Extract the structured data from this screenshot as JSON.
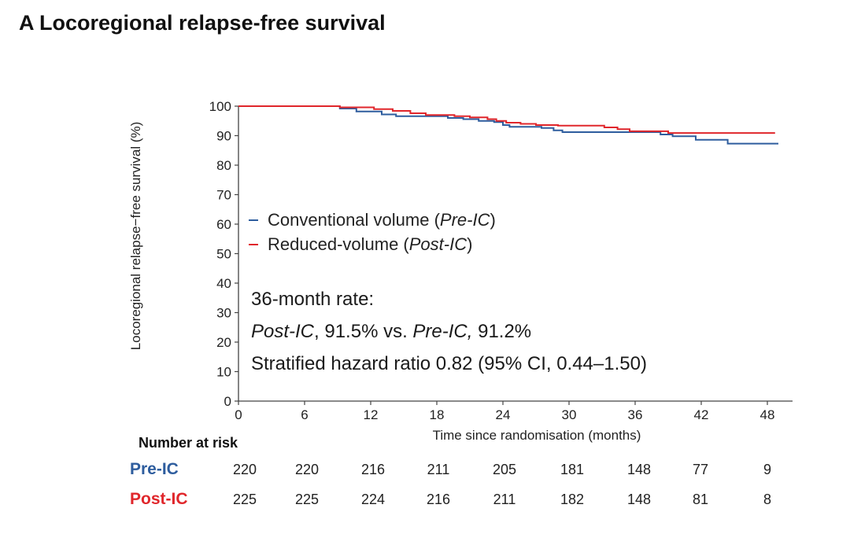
{
  "panel_title": "A Locoregional relapse-free survival",
  "colors": {
    "pre_ic": "#2e5d9e",
    "post_ic": "#e0262b",
    "axis": "#444444"
  },
  "chart_data": {
    "type": "line",
    "subtype": "kaplan-meier-step",
    "title": "A Locoregional relapse-free survival",
    "xlabel": "Time since randomisation (months)",
    "ylabel": "Locoregional relapse−free survival (%)",
    "xlim": [
      0,
      50
    ],
    "ylim": [
      0,
      100
    ],
    "xticks": [
      0,
      6,
      12,
      18,
      24,
      30,
      36,
      42,
      48
    ],
    "yticks": [
      0,
      10,
      20,
      30,
      40,
      50,
      60,
      70,
      80,
      90,
      100
    ],
    "grid": false,
    "legend_position": "center-left",
    "series": [
      {
        "name": "Conventional volume (Pre-IC)",
        "key": "pre_ic",
        "color": "#2e5d9e",
        "x": [
          0,
          9.2,
          10.7,
          13.0,
          14.3,
          16.3,
          17.6,
          19.0,
          20.4,
          21.8,
          23.2,
          24.0,
          24.6,
          26.8,
          27.5,
          28.6,
          29.4,
          33.4,
          36.3,
          38.3,
          38.7,
          39.4,
          41.5,
          44.4,
          49.0
        ],
        "y": [
          100,
          99.2,
          98.2,
          97.2,
          96.6,
          96.6,
          96.6,
          96.0,
          95.6,
          95.0,
          94.6,
          93.6,
          93.0,
          93.0,
          92.6,
          91.8,
          91.2,
          91.2,
          91.2,
          90.4,
          90.4,
          89.8,
          88.6,
          87.3,
          87.3
        ]
      },
      {
        "name": "Reduced-volume (Post-IC)",
        "key": "post_ic",
        "color": "#e0262b",
        "x": [
          0,
          9.2,
          12.3,
          14.0,
          15.6,
          17.0,
          19.6,
          21.0,
          22.6,
          23.4,
          24.3,
          25.6,
          27.0,
          29.0,
          33.2,
          34.4,
          35.5,
          39.0,
          48.7
        ],
        "y": [
          100,
          99.6,
          99.0,
          98.4,
          97.6,
          97.0,
          96.6,
          96.2,
          95.6,
          95.0,
          94.4,
          94.0,
          93.6,
          93.4,
          92.8,
          92.2,
          91.5,
          90.9,
          90.9
        ]
      }
    ],
    "annotations": [
      "36-month rate:",
      "Post-IC, 91.5% vs. Pre-IC, 91.2%",
      "Stratified hazard ratio 0.82 (95% CI, 0.44–1.50)"
    ]
  },
  "legend": {
    "items": [
      {
        "label_plain": "Conventional volume (",
        "label_italic": "Pre-IC",
        "label_end": ")"
      },
      {
        "label_plain": "Reduced-volume (",
        "label_italic": "Post-IC",
        "label_end": ")"
      }
    ]
  },
  "annotation": {
    "line1": "36-month rate:",
    "line2": {
      "a_italic": "Post-IC",
      "a_value": ", 91.5% vs. ",
      "b_italic": "Pre-IC,",
      "b_value": " 91.2%"
    },
    "line3": "Stratified hazard ratio 0.82 (95% CI, 0.44–1.50)"
  },
  "risk_table": {
    "title": "Number at risk",
    "times": [
      0,
      6,
      12,
      18,
      24,
      30,
      36,
      42,
      48
    ],
    "rows": [
      {
        "label": "Pre-IC",
        "color": "#2e5d9e",
        "values": [
          220,
          220,
          216,
          211,
          205,
          181,
          148,
          77,
          9
        ]
      },
      {
        "label": "Post-IC",
        "color": "#e0262b",
        "values": [
          225,
          225,
          224,
          216,
          211,
          182,
          148,
          81,
          8
        ]
      }
    ]
  }
}
